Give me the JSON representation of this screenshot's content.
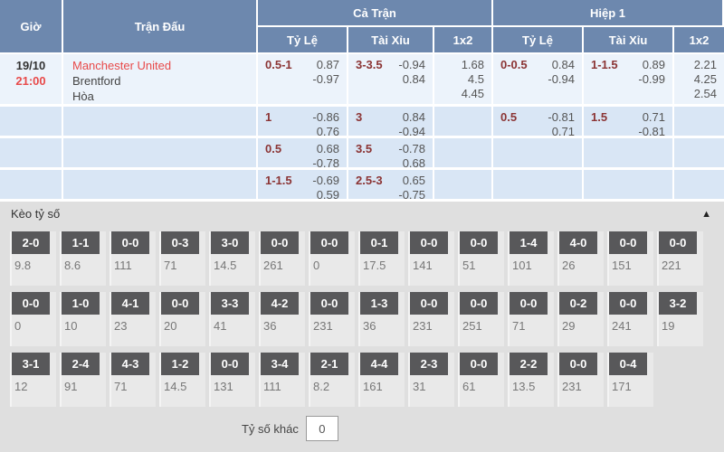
{
  "table": {
    "headers": {
      "time": "Giờ",
      "match": "Trận Đấu",
      "full": "Cả Trận",
      "half": "Hiệp 1",
      "handicap": "Tỷ Lệ",
      "over_under": "Tài Xỉu",
      "one_x_two": "1x2"
    },
    "match": {
      "date": "19/10",
      "time": "21:00",
      "home": "Manchester United",
      "away": "Brentford",
      "draw": "Hòa"
    },
    "rows": [
      {
        "full_hdp": {
          "line": "0.5-1",
          "vals": [
            "0.87",
            "-0.97"
          ]
        },
        "full_ou": {
          "line": "3-3.5",
          "vals": [
            "-0.94",
            "0.84"
          ]
        },
        "full_1x2": [
          "1.68",
          "4.5",
          "4.45"
        ],
        "half_hdp": {
          "line": "0-0.5",
          "vals": [
            "0.84",
            "-0.94"
          ]
        },
        "half_ou": {
          "line": "1-1.5",
          "vals": [
            "0.89",
            "-0.99"
          ]
        },
        "half_1x2": [
          "2.21",
          "4.25",
          "2.54"
        ]
      },
      {
        "full_hdp": {
          "line": "1",
          "vals": [
            "-0.86",
            "0.76"
          ]
        },
        "full_ou": {
          "line": "3",
          "vals": [
            "0.84",
            "-0.94"
          ]
        },
        "full_1x2": [],
        "half_hdp": {
          "line": "0.5",
          "vals": [
            "-0.81",
            "0.71"
          ]
        },
        "half_ou": {
          "line": "1.5",
          "vals": [
            "0.71",
            "-0.81"
          ]
        },
        "half_1x2": []
      },
      {
        "full_hdp": {
          "line": "0.5",
          "vals": [
            "0.68",
            "-0.78"
          ]
        },
        "full_ou": {
          "line": "3.5",
          "vals": [
            "-0.78",
            "0.68"
          ]
        },
        "full_1x2": [],
        "half_hdp": null,
        "half_ou": null,
        "half_1x2": []
      },
      {
        "full_hdp": {
          "line": "1-1.5",
          "vals": [
            "-0.69",
            "0.59"
          ]
        },
        "full_ou": {
          "line": "2.5-3",
          "vals": [
            "0.65",
            "-0.75"
          ]
        },
        "full_1x2": [],
        "half_hdp": null,
        "half_ou": null,
        "half_1x2": []
      }
    ]
  },
  "score_section": {
    "title": "Kèo tỷ số",
    "collapse_icon": "▲",
    "rows": [
      [
        {
          "score": "2-0",
          "odds": "9.8"
        },
        {
          "score": "1-1",
          "odds": "8.6"
        },
        {
          "score": "0-0",
          "odds": "111"
        },
        {
          "score": "0-3",
          "odds": "71"
        },
        {
          "score": "3-0",
          "odds": "14.5"
        },
        {
          "score": "0-0",
          "odds": "261"
        },
        {
          "score": "0-0",
          "odds": "0"
        },
        {
          "score": "0-1",
          "odds": "17.5"
        },
        {
          "score": "0-0",
          "odds": "141"
        },
        {
          "score": "0-0",
          "odds": "51"
        },
        {
          "score": "1-4",
          "odds": "101"
        },
        {
          "score": "4-0",
          "odds": "26"
        },
        {
          "score": "0-0",
          "odds": "151"
        },
        {
          "score": "0-0",
          "odds": "221"
        }
      ],
      [
        {
          "score": "0-0",
          "odds": "0"
        },
        {
          "score": "1-0",
          "odds": "10"
        },
        {
          "score": "4-1",
          "odds": "23"
        },
        {
          "score": "0-0",
          "odds": "20"
        },
        {
          "score": "3-3",
          "odds": "41"
        },
        {
          "score": "4-2",
          "odds": "36"
        },
        {
          "score": "0-0",
          "odds": "231"
        },
        {
          "score": "1-3",
          "odds": "36"
        },
        {
          "score": "0-0",
          "odds": "231"
        },
        {
          "score": "0-0",
          "odds": "251"
        },
        {
          "score": "0-0",
          "odds": "71"
        },
        {
          "score": "0-2",
          "odds": "29"
        },
        {
          "score": "0-0",
          "odds": "241"
        },
        {
          "score": "3-2",
          "odds": "19"
        }
      ],
      [
        {
          "score": "3-1",
          "odds": "12"
        },
        {
          "score": "2-4",
          "odds": "91"
        },
        {
          "score": "4-3",
          "odds": "71"
        },
        {
          "score": "1-2",
          "odds": "14.5"
        },
        {
          "score": "0-0",
          "odds": "131"
        },
        {
          "score": "3-4",
          "odds": "111"
        },
        {
          "score": "2-1",
          "odds": "8.2"
        },
        {
          "score": "4-4",
          "odds": "161"
        },
        {
          "score": "2-3",
          "odds": "31"
        },
        {
          "score": "0-0",
          "odds": "61"
        },
        {
          "score": "2-2",
          "odds": "13.5"
        },
        {
          "score": "0-0",
          "odds": "231"
        },
        {
          "score": "0-4",
          "odds": "171"
        }
      ]
    ],
    "other_label": "Tỷ số khác",
    "other_value": "0"
  },
  "colors": {
    "header_bg": "#6d88ae",
    "row_light": "#ecf3fb",
    "row_dark": "#d9e6f5",
    "accent_red": "#e84a4a",
    "handicap_red": "#8b3434",
    "badge_bg": "#58585a",
    "section_bg": "#dfdfdf"
  }
}
